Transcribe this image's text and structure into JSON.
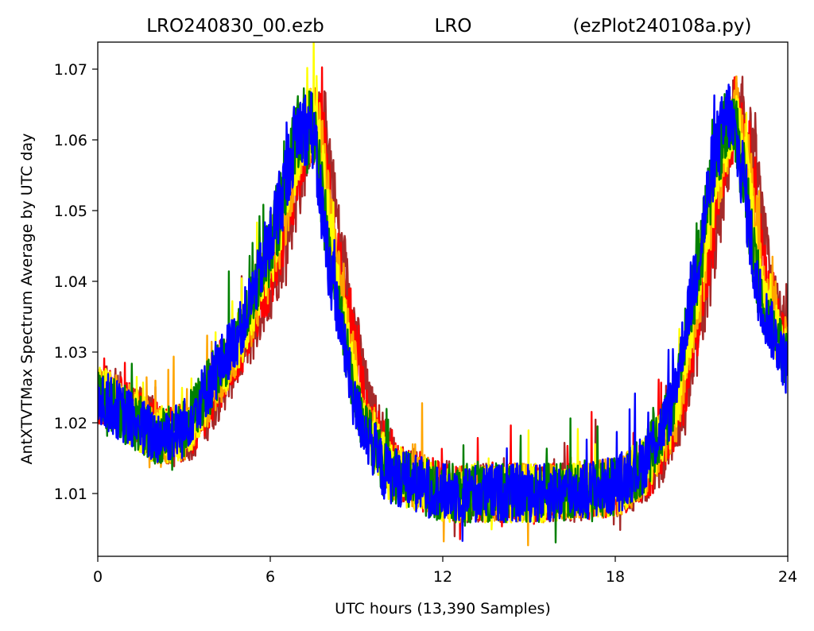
{
  "chart_data": {
    "type": "line",
    "title_parts": [
      "LRO240830_00.ezb",
      "LRO",
      "(ezPlot240108a.py)"
    ],
    "xlabel": "UTC hours  (13,390 Samples)",
    "ylabel": "AntXTVTMax Spectrum Average by UTC day",
    "xlim": [
      0,
      24
    ],
    "ylim": [
      1.001,
      1.074
    ],
    "x_ticks": [
      0,
      6,
      12,
      18,
      24
    ],
    "x_tick_labels": [
      "0",
      "6",
      "12",
      "18",
      "24"
    ],
    "y_ticks": [
      1.01,
      1.02,
      1.03,
      1.04,
      1.05,
      1.06,
      1.07
    ],
    "y_tick_labels": [
      "1.01",
      "1.02",
      "1.03",
      "1.04",
      "1.05",
      "1.06",
      "1.07"
    ],
    "grid": false,
    "legend": "none",
    "series": [
      {
        "color": "#a52a2a",
        "shift": 0.45,
        "x": [
          0,
          1,
          2,
          3,
          4,
          5,
          6,
          6.5,
          7,
          7.5,
          8,
          9,
          10,
          12,
          14,
          16,
          18,
          19,
          20,
          21,
          21.5,
          22,
          22.5,
          23,
          24
        ],
        "y": [
          1.024,
          1.021,
          1.018,
          1.019,
          1.026,
          1.033,
          1.045,
          1.053,
          1.062,
          1.062,
          1.045,
          1.022,
          1.013,
          1.01,
          1.01,
          1.01,
          1.011,
          1.014,
          1.022,
          1.045,
          1.058,
          1.064,
          1.055,
          1.038,
          1.028
        ]
      },
      {
        "color": "#ff0000",
        "shift": 0.3,
        "x": [
          0,
          1,
          2,
          3,
          4,
          5,
          6,
          6.5,
          7,
          7.5,
          8,
          9,
          10,
          12,
          14,
          16,
          18,
          19,
          20,
          21,
          21.5,
          22,
          22.5,
          23,
          24
        ],
        "y": [
          1.024,
          1.021,
          1.018,
          1.019,
          1.026,
          1.033,
          1.045,
          1.053,
          1.062,
          1.062,
          1.045,
          1.022,
          1.013,
          1.01,
          1.01,
          1.01,
          1.011,
          1.014,
          1.022,
          1.045,
          1.058,
          1.064,
          1.055,
          1.038,
          1.028
        ]
      },
      {
        "color": "#ffa500",
        "shift": 0.2,
        "x": [
          0,
          1,
          2,
          3,
          4,
          5,
          6,
          6.5,
          7,
          7.5,
          8,
          9,
          10,
          12,
          14,
          16,
          18,
          19,
          20,
          21,
          21.5,
          22,
          22.5,
          23,
          24
        ],
        "y": [
          1.024,
          1.021,
          1.018,
          1.019,
          1.026,
          1.033,
          1.045,
          1.053,
          1.062,
          1.062,
          1.045,
          1.022,
          1.013,
          1.01,
          1.01,
          1.01,
          1.011,
          1.014,
          1.022,
          1.045,
          1.058,
          1.064,
          1.055,
          1.038,
          1.028
        ]
      },
      {
        "color": "#ffff00",
        "shift": 0.1,
        "x": [
          0,
          1,
          2,
          3,
          4,
          5,
          6,
          6.5,
          7,
          7.5,
          8,
          9,
          10,
          12,
          14,
          16,
          18,
          19,
          20,
          21,
          21.5,
          22,
          22.5,
          23,
          24
        ],
        "y": [
          1.024,
          1.021,
          1.018,
          1.019,
          1.026,
          1.033,
          1.045,
          1.053,
          1.062,
          1.062,
          1.045,
          1.022,
          1.013,
          1.01,
          1.01,
          1.01,
          1.011,
          1.014,
          1.022,
          1.045,
          1.058,
          1.064,
          1.055,
          1.038,
          1.028
        ]
      },
      {
        "color": "#008000",
        "shift": 0.0,
        "x": [
          0,
          1,
          2,
          3,
          4,
          5,
          6,
          6.5,
          7,
          7.5,
          8,
          9,
          10,
          12,
          14,
          16,
          18,
          19,
          20,
          21,
          21.5,
          22,
          22.5,
          23,
          24
        ],
        "y": [
          1.024,
          1.021,
          1.018,
          1.019,
          1.026,
          1.033,
          1.045,
          1.053,
          1.062,
          1.062,
          1.045,
          1.022,
          1.013,
          1.01,
          1.01,
          1.01,
          1.011,
          1.014,
          1.022,
          1.045,
          1.058,
          1.064,
          1.055,
          1.038,
          1.028
        ]
      },
      {
        "color": "#0000ff",
        "shift": -0.05,
        "x": [
          0,
          1,
          2,
          3,
          4,
          5,
          6,
          6.5,
          7,
          7.5,
          8,
          9,
          10,
          12,
          14,
          16,
          18,
          19,
          20,
          21,
          21.5,
          22,
          22.5,
          23,
          24
        ],
        "y": [
          1.024,
          1.021,
          1.018,
          1.019,
          1.026,
          1.033,
          1.045,
          1.053,
          1.062,
          1.062,
          1.045,
          1.022,
          1.013,
          1.01,
          1.01,
          1.01,
          1.011,
          1.014,
          1.022,
          1.045,
          1.058,
          1.064,
          1.055,
          1.038,
          1.028
        ]
      }
    ]
  }
}
